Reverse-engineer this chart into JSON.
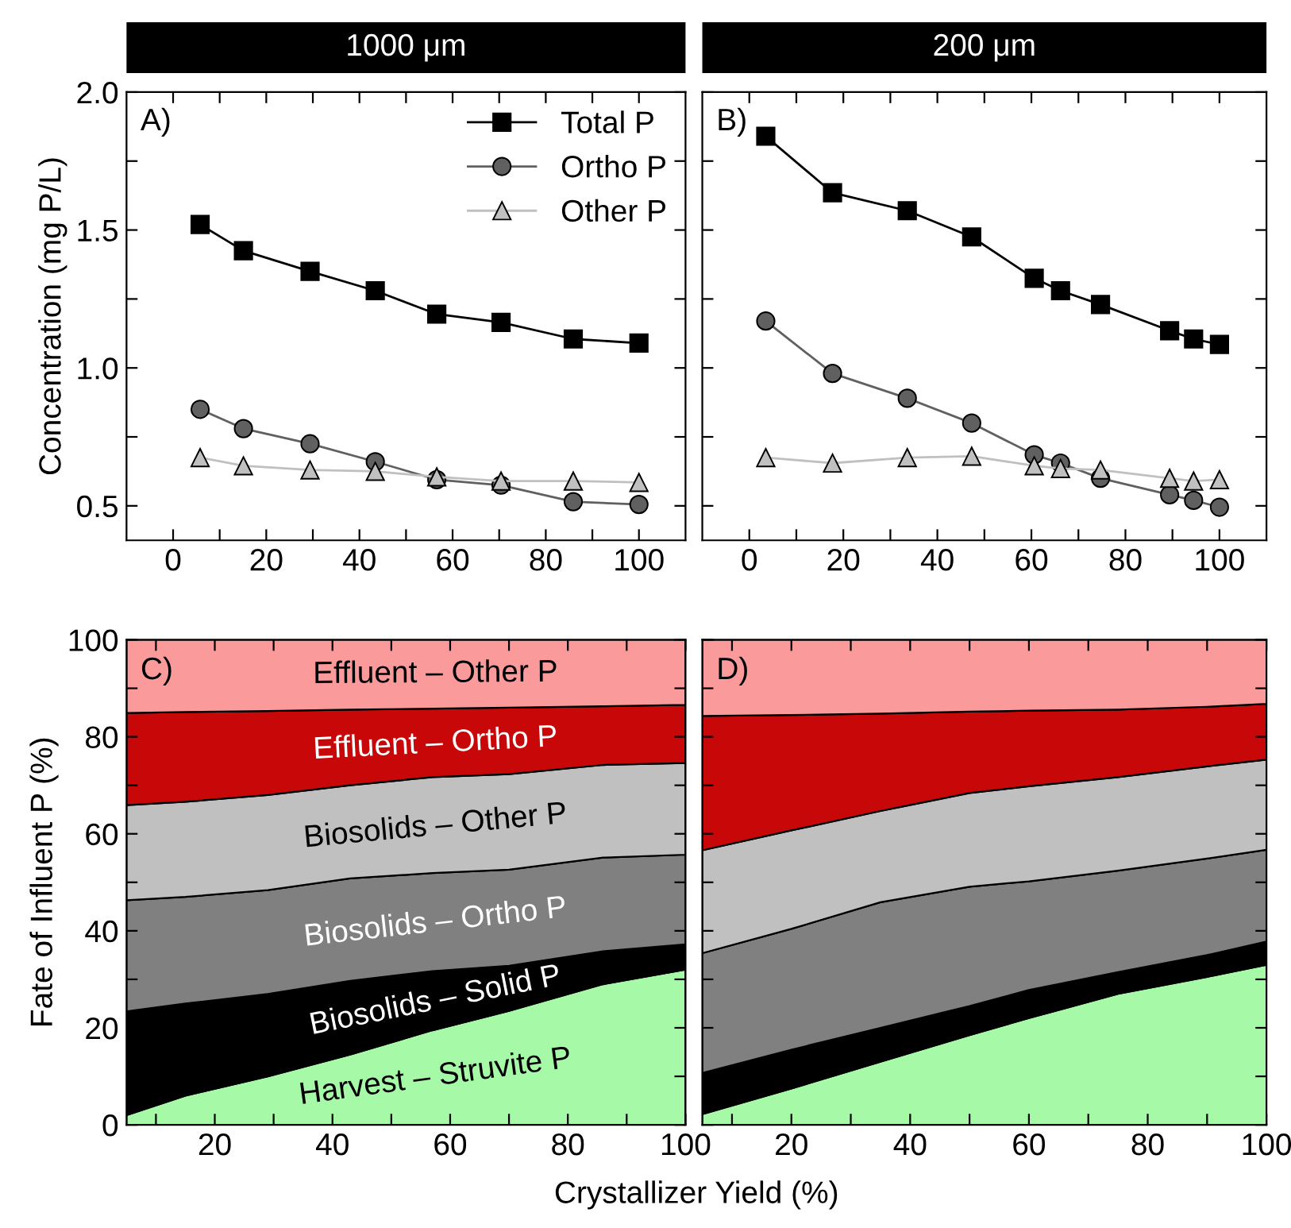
{
  "chart_data": [
    {
      "type": "line",
      "title": "1000 μm",
      "ylabel": "Concentration (mg P/L)",
      "annotations": [
        "A)"
      ],
      "legend": "top right",
      "grid": false,
      "x": [
        5.8,
        15.1,
        29.4,
        43.4,
        56.6,
        70.4,
        85.9,
        100
      ],
      "xlim": [
        -10,
        110
      ],
      "xticks": [
        0,
        {
          "value": 10,
          "label": null
        },
        20,
        {
          "value": 30,
          "label": null
        },
        40,
        {
          "value": 50,
          "label": null
        },
        60,
        {
          "value": 70,
          "label": null
        },
        80,
        {
          "value": 90,
          "label": null
        },
        100
      ],
      "ylim": [
        0.375,
        2.0
      ],
      "yticks": [
        {
          "value": 0.5,
          "label": "0.5"
        },
        {
          "value": 0.75,
          "label": null
        },
        {
          "value": 1.0,
          "label": "1.0"
        },
        {
          "value": 1.25,
          "label": null
        },
        {
          "value": 1.5,
          "label": "1.5"
        },
        {
          "value": 1.75,
          "label": null
        },
        {
          "value": 2.0,
          "label": "2.0"
        }
      ],
      "series": [
        {
          "name": "Total P",
          "color": "#000000",
          "marker": "square",
          "values": [
            1.52,
            1.425,
            1.35,
            1.28,
            1.195,
            1.165,
            1.105,
            1.09
          ]
        },
        {
          "name": "Ortho P",
          "color": "#606060",
          "marker": "circle",
          "values": [
            0.85,
            0.78,
            0.725,
            0.66,
            0.595,
            0.575,
            0.515,
            0.505
          ]
        },
        {
          "name": "Other P",
          "color": "#c0c0c0",
          "marker": "triangle",
          "values": [
            0.675,
            0.645,
            0.63,
            0.625,
            0.605,
            0.59,
            0.59,
            0.585
          ]
        }
      ]
    },
    {
      "type": "line",
      "title": "200 μm",
      "annotations": [
        "B)"
      ],
      "grid": false,
      "tick_labels": "x",
      "x": [
        3.5,
        17.7,
        33.6,
        47.3,
        60.6,
        66.2,
        74.7,
        89.4,
        94.5,
        100
      ],
      "xlim": [
        -10,
        110
      ],
      "xticks": [
        0,
        {
          "value": 10,
          "label": null
        },
        20,
        {
          "value": 30,
          "label": null
        },
        40,
        {
          "value": 50,
          "label": null
        },
        60,
        {
          "value": 70,
          "label": null
        },
        80,
        {
          "value": 90,
          "label": null
        },
        100
      ],
      "ylim": [
        0.375,
        2.0
      ],
      "yticks": [
        {
          "value": 0.5,
          "label": null
        },
        {
          "value": 0.75,
          "label": null
        },
        {
          "value": 1.0,
          "label": null
        },
        {
          "value": 1.25,
          "label": null
        },
        {
          "value": 1.5,
          "label": null
        },
        {
          "value": 1.75,
          "label": null
        },
        {
          "value": 2.0,
          "label": null
        }
      ],
      "series": [
        {
          "color": "#000000",
          "marker": "square",
          "values": [
            1.84,
            1.635,
            1.57,
            1.475,
            1.325,
            1.28,
            1.23,
            1.135,
            1.105,
            1.085
          ]
        },
        {
          "color": "#606060",
          "marker": "circle",
          "values": [
            1.17,
            0.98,
            0.89,
            0.8,
            0.685,
            0.655,
            0.6,
            0.54,
            0.52,
            0.495
          ]
        },
        {
          "color": "#c0c0c0",
          "marker": "triangle",
          "values": [
            0.675,
            0.655,
            0.675,
            0.68,
            0.645,
            0.635,
            0.63,
            0.6,
            0.59,
            0.595
          ]
        }
      ]
    },
    {
      "type": "area",
      "stacked": true,
      "ylabel": "Fate of Influent P (%)",
      "xlabel": "Crystallizer Yield (%)",
      "annotations": [
        "C)"
      ],
      "grid": false,
      "x": [
        5,
        15,
        29,
        43,
        57,
        70,
        86,
        100
      ],
      "xlim": [
        5,
        100
      ],
      "xticks": [
        {
          "value": 10,
          "label": null
        },
        20,
        {
          "value": 30,
          "label": null
        },
        40,
        {
          "value": 50,
          "label": null
        },
        60,
        {
          "value": 70,
          "label": null
        },
        80,
        {
          "value": 90,
          "label": null
        },
        100
      ],
      "ylim": [
        0,
        100
      ],
      "yticks": [
        0,
        {
          "value": 10,
          "label": null
        },
        20,
        {
          "value": 30,
          "label": null
        },
        40,
        {
          "value": 50,
          "label": null
        },
        60,
        {
          "value": 70,
          "label": null
        },
        80,
        {
          "value": 90,
          "label": null
        },
        100
      ],
      "series": [
        {
          "name": "Harvest – Struvite P",
          "color": "#a6f9a6",
          "values": [
            2,
            6,
            10,
            14.5,
            19.5,
            23.5,
            29,
            32
          ]
        },
        {
          "name": "Biosolids – Solid P",
          "color": "#000000",
          "values": [
            21.4,
            19,
            17,
            15.2,
            12.2,
            9.3,
            6.8,
            5.2
          ]
        },
        {
          "name": "Biosolids – Ortho P",
          "color": "#808080",
          "values": [
            22.9,
            22,
            21.4,
            21.1,
            20.2,
            19.8,
            19.3,
            18.5
          ]
        },
        {
          "name": "Biosolids – Other P",
          "color": "#c0c0c0",
          "values": [
            19.6,
            19.6,
            19.6,
            19.2,
            19.8,
            19.7,
            19.1,
            18.9
          ]
        },
        {
          "name": "Effluent – Ortho P",
          "color": "#c80808",
          "values": [
            19,
            18.5,
            17.3,
            15.6,
            14.1,
            13.7,
            12.1,
            12
          ]
        },
        {
          "name": "Effluent – Other P",
          "color": "#fa9a9a",
          "values": [
            15.1,
            14.9,
            14.7,
            14.4,
            14.2,
            14,
            13.7,
            13.4
          ]
        }
      ]
    },
    {
      "type": "area",
      "stacked": true,
      "annotations": [
        "D)"
      ],
      "grid": false,
      "tick_labels": "x",
      "x": [
        5,
        20,
        35,
        50,
        60,
        75,
        90,
        100
      ],
      "xlim": [
        5,
        100
      ],
      "xticks": [
        {
          "value": 10,
          "label": null
        },
        20,
        {
          "value": 30,
          "label": null
        },
        40,
        {
          "value": 50,
          "label": null
        },
        60,
        {
          "value": 70,
          "label": null
        },
        80,
        {
          "value": 90,
          "label": null
        },
        100
      ],
      "ylim": [
        0,
        100
      ],
      "yticks": [
        0,
        {
          "value": 10,
          "label": null
        },
        20,
        {
          "value": 30,
          "label": null
        },
        40,
        {
          "value": 50,
          "label": null
        },
        60,
        {
          "value": 70,
          "label": null
        },
        80,
        {
          "value": 90,
          "label": null
        },
        100
      ],
      "series": [
        {
          "color": "#a6f9a6",
          "values": [
            2.2,
            7.5,
            13,
            18.5,
            22,
            27,
            30.5,
            33
          ]
        },
        {
          "color": "#000000",
          "values": [
            8.5,
            8,
            7,
            6,
            5.8,
            4.5,
            4.5,
            4.8
          ]
        },
        {
          "color": "#808080",
          "values": [
            24.7,
            24.9,
            25.9,
            24.6,
            22.4,
            20.9,
            19.9,
            18.9
          ]
        },
        {
          "color": "#c0c0c0",
          "values": [
            21.2,
            20.3,
            18.8,
            19.3,
            19.6,
            19.3,
            19,
            18.6
          ]
        },
        {
          "color": "#c80808",
          "values": [
            27.7,
            23.8,
            20.1,
            16.8,
            15.6,
            13.9,
            12.3,
            11.5
          ]
        },
        {
          "color": "#fa9a9a",
          "values": [
            15.7,
            15.5,
            15.2,
            14.8,
            14.6,
            14.4,
            13.8,
            13.2
          ]
        }
      ]
    }
  ]
}
